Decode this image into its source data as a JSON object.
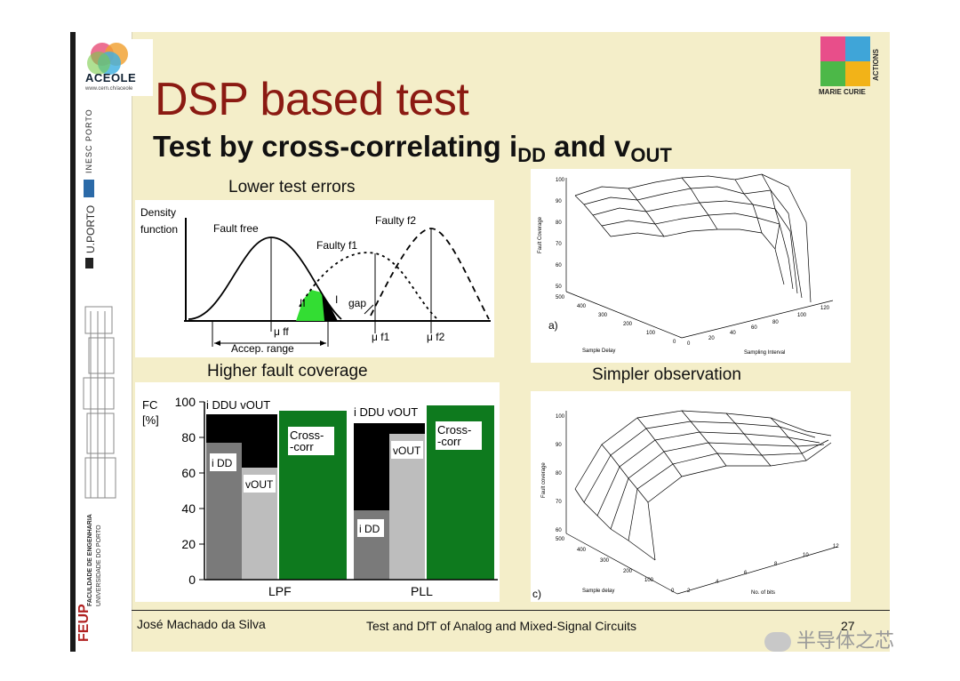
{
  "slide": {
    "title": "DSP based test",
    "subtitle_main": "Test by cross-correlating i",
    "subtitle_sub1": "DD",
    "subtitle_and": " and v",
    "subtitle_sub2": "OUT"
  },
  "sidebar": {
    "aceole_name": "ACEOLE",
    "aceole_url": "www.cern.ch/aceole",
    "inesc": "INESC PORTO",
    "uporto": "U.PORTO",
    "feup": "FEUP",
    "feup_line1": "FACULDADE DE ENGENHARIA",
    "feup_line2": "UNIVERSIDADE DO PORTO"
  },
  "marie_curie": {
    "line1": "ACTIONS",
    "line2": "MARIE CURIE"
  },
  "density_figure": {
    "heading": "Lower test errors",
    "ylabel_1": "Density",
    "ylabel_2": "function",
    "curve_fault_free": "Fault free",
    "curve_faulty_f1": "Faulty f1",
    "curve_faulty_f2": "Faulty f2",
    "region_II": "II",
    "region_I": "I",
    "gap": "gap",
    "mu_ff": "μ ff",
    "mu_f1": "μ f1",
    "mu_f2": "μ f2",
    "accep_range": "Accep. range"
  },
  "fc_figure": {
    "heading": "Higher fault coverage",
    "ylabel_1": "FC",
    "ylabel_2": "[%]",
    "group_labels": [
      "LPF",
      "PLL"
    ],
    "union_label": "i DDU vOUT",
    "bar_labels": {
      "idd": "i DD",
      "vout": "vOUT",
      "cross": "Cross- -corr"
    },
    "colors": {
      "idd": "#7a7a7a",
      "vout": "#bdbdbd",
      "union": "#000000",
      "cross": "#0e7a1e"
    }
  },
  "chart_data": {
    "type": "bar",
    "categories": [
      "LPF",
      "PLL"
    ],
    "ylim": [
      0,
      100
    ],
    "yticks": [
      0,
      20,
      40,
      60,
      80,
      100
    ],
    "series": [
      {
        "name": "i DD",
        "values": [
          77,
          39
        ]
      },
      {
        "name": "vOUT",
        "values": [
          63,
          82
        ]
      },
      {
        "name": "i DDU vOUT",
        "values": [
          93,
          88
        ]
      },
      {
        "name": "Cross- -corr",
        "values": [
          95,
          98
        ]
      }
    ]
  },
  "surface_a": {
    "caption": "a)",
    "zlabel": "Fault Coverage",
    "xlabel": "Sample Delay",
    "ylabel": "Sampling Interval",
    "zticks": [
      "50",
      "60",
      "70",
      "80",
      "90",
      "100"
    ],
    "xticks": [
      "500",
      "400",
      "300",
      "200",
      "100",
      "0"
    ],
    "yticks": [
      "0",
      "20",
      "40",
      "60",
      "80",
      "100",
      "120"
    ]
  },
  "surface_c": {
    "heading": "Simpler observation",
    "caption": "c)",
    "zlabel": "Fault coverage",
    "xlabel": "Sample delay",
    "ylabel": "No. of bits",
    "zticks": [
      "60",
      "70",
      "80",
      "90",
      "100"
    ],
    "xticks": [
      "500",
      "400",
      "300",
      "200",
      "100",
      "0"
    ],
    "yticks": [
      "2",
      "4",
      "6",
      "8",
      "10",
      "12"
    ]
  },
  "footer": {
    "author": "José Machado da Silva",
    "course": "Test and DfT of Analog and Mixed-Signal Circuits",
    "page": "27"
  },
  "watermark": {
    "text": "半导体之芯"
  }
}
